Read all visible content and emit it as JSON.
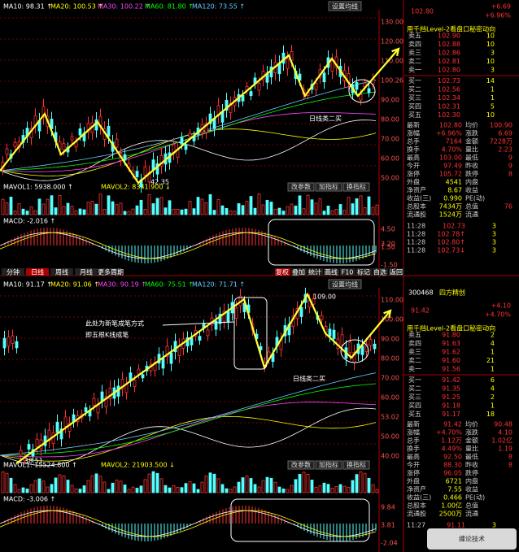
{
  "top": {
    "ma": [
      "MA10: 98.31 ↑",
      "MA20: 100.53 ↑",
      "MA30: 100.22 ↑",
      "MA60: 81.80 ↑",
      "MA120: 73.55 ↑"
    ],
    "ma_button": "设置均线",
    "price_ticks": [
      "130.00",
      "120.00",
      "110.00",
      "100.26",
      "90.00",
      "80.00",
      "70.00",
      "60.00",
      "50.00"
    ],
    "low_label": "42.35",
    "annotation": "日线类二买",
    "vol_header": [
      "MAVOL1: 5938.000 ↑",
      "MAVOL2: 8341.900 ↓"
    ],
    "vol_buttons": [
      "改参数",
      "加指标",
      "换指标"
    ],
    "vol_ticks": [
      "3.20",
      "2.00"
    ],
    "macd_header": "MACD: -2.016 ↑",
    "macd_ticks": [
      "4.50",
      "1.50",
      "-1.50"
    ]
  },
  "toolbar": {
    "left": [
      "分钟",
      "日线",
      "周线",
      "月线",
      "更多周期"
    ],
    "right": [
      "复权",
      "叠加",
      "统计",
      "画线",
      "F10",
      "标记",
      "自选",
      "返回"
    ]
  },
  "bottom": {
    "ma": [
      "MA10: 91.17 ↑",
      "MA20: 91.06 ↑",
      "MA30: 90.19 ↑",
      "MA60: 75.51 ↑",
      "MA120: 71.71 ↑"
    ],
    "ma_button": "设置均线",
    "price_ticks": [
      "110.00",
      "100.00",
      "90.00",
      "80.00",
      "70.00",
      "60.00",
      "53.02",
      "50.00",
      "40.00"
    ],
    "high_label": "109.00",
    "low_label": "38.51",
    "note": [
      "此处为新笔成笔方式",
      "即五根K线成笔"
    ],
    "annotation": "日线类二买",
    "vol_header": [
      "MAVOL1: 15524.800 ↑",
      "MAVOL2: 21903.500 ↓"
    ],
    "vol_buttons": [
      "改参数",
      "加指标",
      "换指标"
    ],
    "macd_header": "MACD: -3.006 ↑",
    "macd_ticks": [
      "9.84",
      "3.81",
      "-2.04"
    ]
  },
  "quote1": {
    "price": "102.80",
    "change": "+6.69",
    "pct": "+6.96%",
    "level2": "用千档Level-2看盘口秘密动向",
    "book": [
      [
        "卖五",
        "102.90",
        "10"
      ],
      [
        "卖四",
        "102.88",
        "10"
      ],
      [
        "卖三",
        "102.86",
        "3"
      ],
      [
        "卖二",
        "102.81",
        "10"
      ],
      [
        "卖一",
        "102.80",
        "3"
      ],
      [
        "买一",
        "102.73",
        "14"
      ],
      [
        "买二",
        "102.56",
        "1"
      ],
      [
        "买三",
        "102.34",
        "1"
      ],
      [
        "买四",
        "102.31",
        "5"
      ],
      [
        "买五",
        "102.30",
        "10"
      ]
    ],
    "stats": [
      [
        "最新",
        "102.80",
        "均价",
        "100.90"
      ],
      [
        "涨幅",
        "+6.96%",
        "涨跌",
        "6.69"
      ],
      [
        "总手",
        "7164",
        "金额",
        "7228万"
      ],
      [
        "换手",
        "4.70%",
        "量比",
        "2.23"
      ],
      [
        "最高",
        "103.00",
        "最低",
        "9"
      ],
      [
        "今开",
        "97.49",
        "昨收",
        "9"
      ],
      [
        "涨停",
        "105.72",
        "跌停",
        "8"
      ],
      [
        "外盘",
        "4541",
        "内盘",
        ""
      ],
      [
        "净资产",
        "8.67",
        "收益",
        ""
      ],
      [
        "收益(三)",
        "0.990",
        "PE(动)",
        ""
      ],
      [
        "总股本",
        "7434万",
        "总值",
        "76"
      ],
      [
        "流通股",
        "1524万",
        "流通",
        ""
      ]
    ],
    "trades": [
      [
        "11:28",
        "102.73",
        "3"
      ],
      [
        "11:28",
        "102.78↑",
        "3"
      ],
      [
        "11:28",
        "102.80↑",
        "3"
      ],
      [
        "11:28",
        "102.73↓",
        "3"
      ]
    ]
  },
  "quote2": {
    "code": "300468",
    "name": "四方精创",
    "price": "91.42",
    "change": "+4.10",
    "pct": "+4.70%",
    "level2": "用千档Level-2看盘口秘密动向",
    "book": [
      [
        "卖五",
        "91.80",
        "2"
      ],
      [
        "卖四",
        "91.63",
        "4"
      ],
      [
        "卖三",
        "91.62",
        "1"
      ],
      [
        "卖二",
        "91.60",
        "21"
      ],
      [
        "卖一",
        "91.56",
        "1"
      ],
      [
        "买一",
        "91.42",
        "6"
      ],
      [
        "买二",
        "91.35",
        "4"
      ],
      [
        "买三",
        "91.25",
        "2"
      ],
      [
        "买四",
        "91.18",
        "1"
      ],
      [
        "买五",
        "91.17",
        "18"
      ]
    ],
    "stats": [
      [
        "最新",
        "91.42",
        "均价",
        "90.48"
      ],
      [
        "涨幅",
        "+4.70%",
        "涨跌",
        "4.10"
      ],
      [
        "总手",
        "1.12万",
        "金额",
        "1.02亿"
      ],
      [
        "换手",
        "4.49%",
        "量比",
        "1.19"
      ],
      [
        "最高",
        "92.50",
        "最低",
        "8"
      ],
      [
        "今开",
        "88.30",
        "昨收",
        "8"
      ],
      [
        "涨停",
        "96.05",
        "跌停",
        ""
      ],
      [
        "外盘",
        "6721",
        "内盘",
        ""
      ],
      [
        "净资产",
        "7.55",
        "收益",
        ""
      ],
      [
        "收益(三)",
        "0.466",
        "PE(动)",
        ""
      ],
      [
        "总股本",
        "1.00亿",
        "总值",
        ""
      ],
      [
        "流通股",
        "2500万",
        "流通",
        ""
      ]
    ],
    "trades": [
      [
        "11:27",
        "91.11",
        "3"
      ]
    ]
  },
  "watermark": "缠论技术"
}
